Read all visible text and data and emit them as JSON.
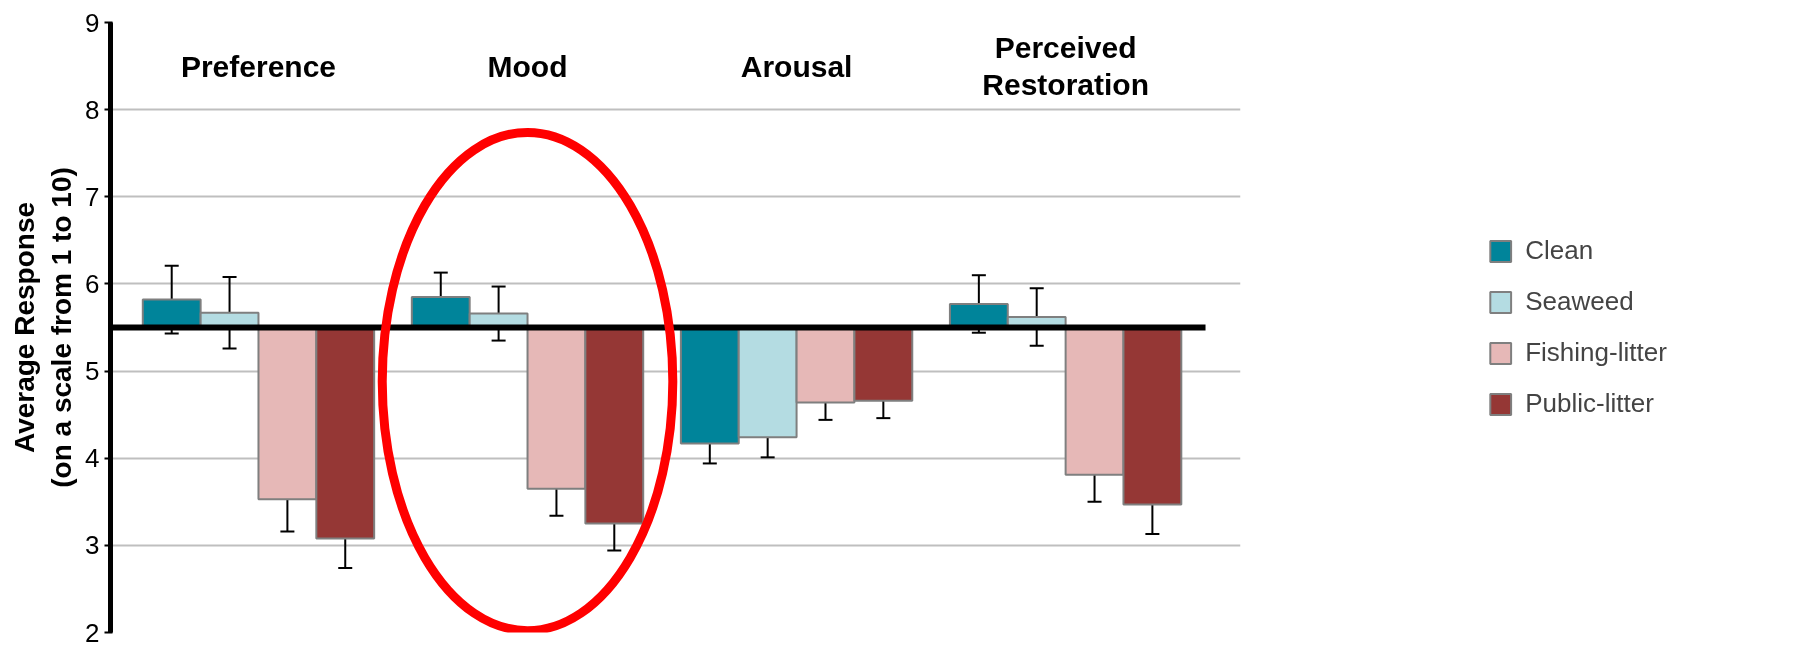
{
  "chart_data": {
    "type": "bar",
    "ylabel": "Average Response\n(on a scale from 1 to 10)",
    "categories": [
      "Preference",
      "Mood",
      "Arousal",
      "Perceived Restoration"
    ],
    "series": [
      {
        "name": "Clean",
        "color": "#00849a",
        "values": [
          0.32,
          0.35,
          -1.33,
          0.27
        ],
        "base": [
          5.5,
          5.5,
          5.5,
          5.5
        ],
        "errors": [
          0.39,
          0.28,
          0.23,
          0.33
        ]
      },
      {
        "name": "Seaweed",
        "color": "#b4dce2",
        "values": [
          0.17,
          0.16,
          -1.26,
          0.12
        ],
        "base": [
          5.5,
          5.5,
          5.5,
          5.5
        ],
        "errors": [
          0.41,
          0.31,
          0.23,
          0.33
        ]
      },
      {
        "name": "Fishing-litter",
        "color": "#e6b8b7",
        "values": [
          -1.97,
          -1.85,
          -0.86,
          -1.69
        ],
        "base": [
          5.5,
          5.5,
          5.5,
          5.5
        ],
        "errors": [
          0.37,
          0.31,
          0.2,
          0.31
        ]
      },
      {
        "name": "Public-litter",
        "color": "#953735",
        "values": [
          -2.42,
          -2.25,
          -0.84,
          -2.03
        ],
        "base": [
          5.5,
          5.5,
          5.5,
          5.5
        ],
        "errors": [
          0.34,
          0.31,
          0.2,
          0.34
        ]
      }
    ],
    "ylim": [
      2,
      9
    ],
    "yticks": [
      2,
      3,
      4,
      5,
      6,
      7,
      8,
      9
    ],
    "grid": "y",
    "legend": "right",
    "ref_lines": [
      {
        "axis": "y",
        "value": 5.5,
        "color": "#000000"
      }
    ]
  }
}
